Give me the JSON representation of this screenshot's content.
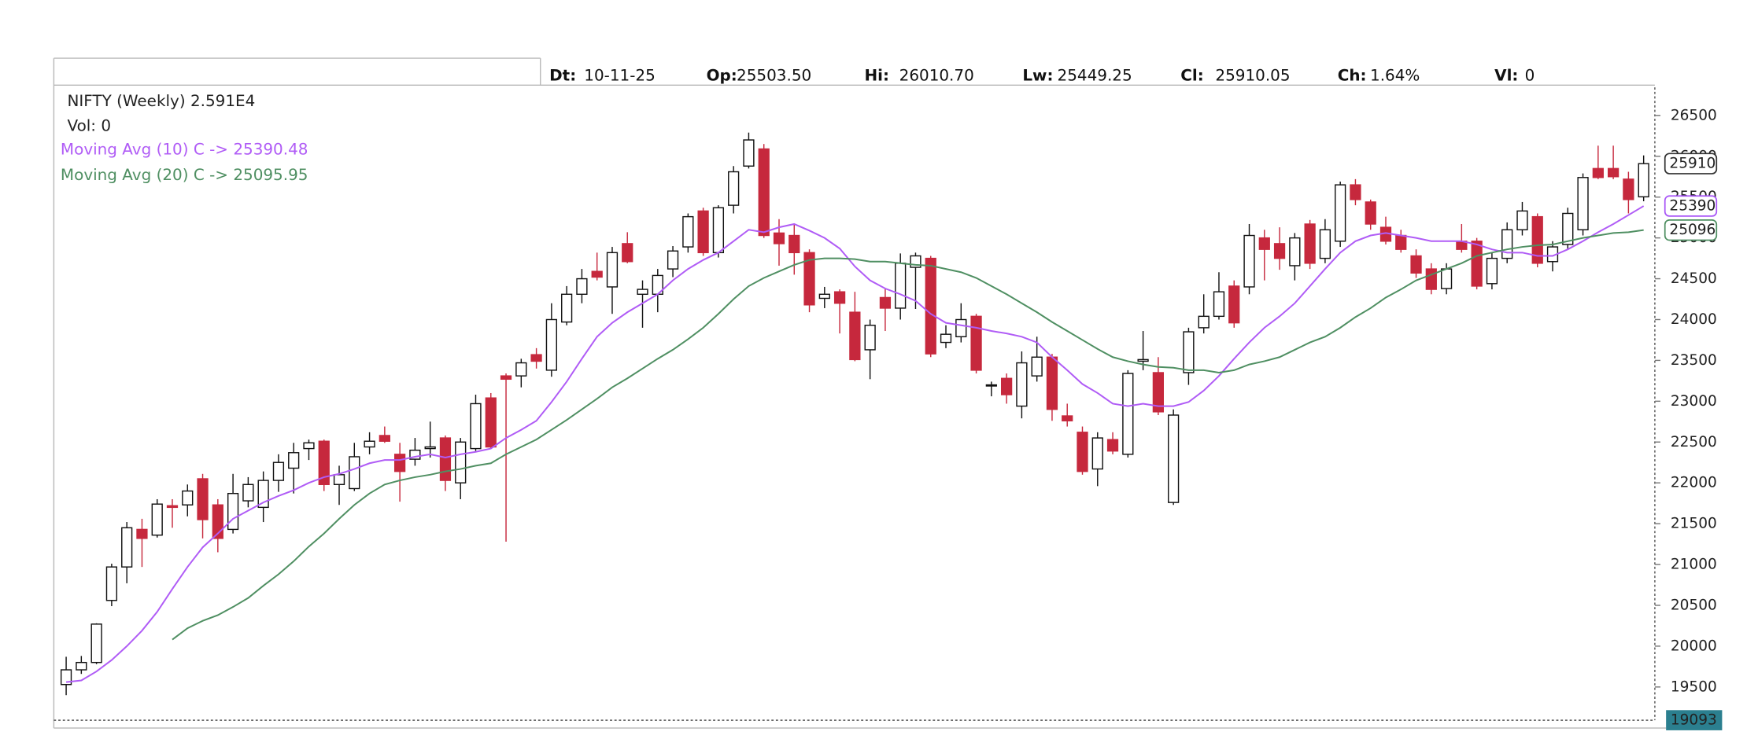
{
  "header": {
    "labels": [
      "Dt:",
      "Op:",
      "Hi:",
      "Lw:",
      "Cl:",
      "Ch:",
      "Vl:"
    ],
    "values": [
      "10-11-25",
      "25503.50",
      "26010.70",
      "25449.25",
      "25910.05",
      "1.64%",
      "0"
    ]
  },
  "chart_data": {
    "type": "candlestick",
    "volume_label": "Vol: 0",
    "ylim": [
      19093,
      26844
    ],
    "yticks": [
      19500,
      20000,
      20500,
      21000,
      21500,
      22000,
      22500,
      23000,
      23500,
      24000,
      24500,
      25000,
      25500,
      26000,
      26500
    ],
    "grid": false,
    "markers": [
      {
        "value": 25910.05,
        "label": "25910",
        "color": "#333333"
      },
      {
        "value": 25390.48,
        "label": "25390",
        "color": "#a855f7"
      },
      {
        "value": 25095.95,
        "label": "25096",
        "color": "#4f8f62"
      }
    ],
    "series": [
      {
        "name": "NIFTY (Weekly) 2.591E4",
        "up_color": "#ffffff",
        "down_color": "#c6283d",
        "open": [
          19530,
          19710,
          19800,
          20560,
          20970,
          21430,
          21360,
          21720,
          21730,
          22050,
          21730,
          21430,
          21780,
          21700,
          22030,
          22180,
          22420,
          22510,
          21980,
          21930,
          22440,
          22580,
          22350,
          22290,
          22420,
          22550,
          22000,
          22420,
          23040,
          23310,
          23310,
          23570,
          23380,
          23970,
          24310,
          24590,
          24400,
          24930,
          24310,
          24310,
          24620,
          24890,
          25330,
          24820,
          25400,
          25880,
          26090,
          25060,
          25030,
          24820,
          24260,
          24340,
          24090,
          23630,
          24270,
          24140,
          24640,
          24750,
          23720,
          23790,
          24040,
          23190,
          23280,
          22940,
          23310,
          23540,
          22820,
          22620,
          22170,
          22530,
          22350,
          23490,
          23350,
          21760,
          23350,
          23900,
          24040,
          24410,
          24400,
          25000,
          24930,
          24660,
          25170,
          24750,
          24960,
          25650,
          25440,
          25130,
          25030,
          24780,
          24620,
          24380,
          24960,
          24960,
          24440,
          24750,
          25100,
          25260,
          24710,
          24920,
          25100,
          25850,
          25850,
          25720,
          25503.5
        ],
        "high": [
          19870,
          19880,
          20280,
          21010,
          21520,
          21560,
          21800,
          21800,
          21980,
          22110,
          21800,
          22110,
          22070,
          22140,
          22350,
          22490,
          22530,
          22530,
          22210,
          22490,
          22620,
          22690,
          22490,
          22550,
          22750,
          22580,
          22550,
          23080,
          23100,
          23340,
          23520,
          23650,
          24200,
          24410,
          24620,
          24820,
          24890,
          25070,
          24480,
          24620,
          24900,
          25300,
          25370,
          25400,
          25880,
          26290,
          26150,
          25230,
          25170,
          24860,
          24400,
          24370,
          24340,
          24000,
          24380,
          24810,
          24820,
          24780,
          23930,
          24200,
          24070,
          23240,
          23340,
          23610,
          23790,
          23580,
          22970,
          22690,
          22620,
          22620,
          23380,
          23860,
          23540,
          22900,
          23900,
          24310,
          24580,
          24480,
          25170,
          25100,
          25130,
          25060,
          25220,
          25230,
          25690,
          25720,
          25470,
          25260,
          25100,
          24860,
          24690,
          24690,
          25170,
          25000,
          24820,
          25190,
          25440,
          25300,
          24960,
          25370,
          25790,
          26130,
          26130,
          25810,
          26010.7
        ],
        "low": [
          19400,
          19660,
          19780,
          20490,
          20770,
          20970,
          21330,
          21450,
          21590,
          21320,
          21150,
          21380,
          21700,
          21520,
          21890,
          21870,
          22280,
          21900,
          21730,
          21900,
          22350,
          22490,
          21770,
          22210,
          22310,
          21900,
          21800,
          22390,
          22420,
          21280,
          23170,
          23400,
          23300,
          23930,
          24200,
          24480,
          24070,
          24690,
          23900,
          24090,
          24520,
          24820,
          24780,
          24760,
          25300,
          25850,
          25000,
          24660,
          24550,
          24090,
          24140,
          23830,
          23490,
          23270,
          23860,
          24000,
          24130,
          23540,
          23650,
          23720,
          23340,
          23060,
          22970,
          22790,
          23240,
          22760,
          22690,
          22100,
          21960,
          22350,
          22310,
          23380,
          22830,
          21730,
          23200,
          23830,
          24000,
          23900,
          24310,
          24480,
          24610,
          24480,
          24620,
          24690,
          24890,
          25400,
          25100,
          24920,
          24820,
          24510,
          24310,
          24310,
          24820,
          24370,
          24370,
          24690,
          25030,
          24640,
          24590,
          24860,
          25030,
          25720,
          25720,
          25300,
          25449.25
        ],
        "close": [
          19710,
          19800,
          20270,
          20970,
          21450,
          21320,
          21740,
          21700,
          21900,
          21550,
          21320,
          21870,
          21980,
          22030,
          22250,
          22370,
          22490,
          21980,
          22100,
          22320,
          22510,
          22510,
          22140,
          22400,
          22440,
          22030,
          22500,
          22970,
          22440,
          23270,
          23470,
          23490,
          24000,
          24310,
          24500,
          24520,
          24820,
          24710,
          24370,
          24540,
          24840,
          25260,
          24820,
          25370,
          25810,
          26200,
          25030,
          24930,
          24820,
          24180,
          24310,
          24200,
          23510,
          23930,
          24140,
          24690,
          24780,
          23580,
          23820,
          24000,
          23380,
          23200,
          23080,
          23470,
          23540,
          22900,
          22760,
          22140,
          22550,
          22390,
          23340,
          23510,
          22870,
          22830,
          23850,
          24040,
          24340,
          23960,
          25030,
          24860,
          24750,
          25000,
          24690,
          25100,
          25650,
          25470,
          25170,
          24960,
          24860,
          24570,
          24370,
          24620,
          24860,
          24410,
          24750,
          25100,
          25330,
          24690,
          24890,
          25300,
          25740,
          25740,
          25750,
          25470,
          25910.05
        ]
      },
      {
        "name": "Moving Avg (10) C -> 25390.48",
        "color": "#b05cf6",
        "values": [
          19560,
          19580,
          19690,
          19830,
          20000,
          20190,
          20420,
          20700,
          20970,
          21210,
          21380,
          21560,
          21660,
          21760,
          21840,
          21910,
          22000,
          22070,
          22110,
          22170,
          22240,
          22280,
          22280,
          22320,
          22350,
          22310,
          22350,
          22380,
          22420,
          22550,
          22650,
          22760,
          22990,
          23240,
          23520,
          23790,
          23960,
          24090,
          24200,
          24310,
          24480,
          24620,
          24730,
          24820,
          24960,
          25100,
          25070,
          25130,
          25170,
          25090,
          25000,
          24870,
          24650,
          24480,
          24380,
          24310,
          24230,
          24070,
          23960,
          23930,
          23900,
          23860,
          23830,
          23790,
          23720,
          23540,
          23380,
          23210,
          23100,
          22970,
          22940,
          22970,
          22940,
          22940,
          22990,
          23130,
          23310,
          23520,
          23720,
          23900,
          24040,
          24200,
          24410,
          24620,
          24820,
          24960,
          25030,
          25060,
          25030,
          25000,
          24960,
          24960,
          24960,
          24920,
          24860,
          24820,
          24820,
          24780,
          24780,
          24860,
          24960,
          25070,
          25170,
          25280,
          25390.48
        ]
      },
      {
        "name": "Moving Avg (20) C -> 25095.95",
        "color": "#4f8f62",
        "values": [
          null,
          null,
          null,
          null,
          null,
          null,
          null,
          20080,
          20220,
          20310,
          20380,
          20480,
          20590,
          20740,
          20880,
          21040,
          21220,
          21380,
          21560,
          21730,
          21870,
          21980,
          22030,
          22070,
          22100,
          22140,
          22170,
          22210,
          22240,
          22350,
          22440,
          22530,
          22650,
          22770,
          22900,
          23030,
          23170,
          23280,
          23400,
          23520,
          23630,
          23760,
          23900,
          24070,
          24250,
          24410,
          24510,
          24590,
          24670,
          24730,
          24750,
          24750,
          24740,
          24710,
          24710,
          24690,
          24670,
          24660,
          24620,
          24580,
          24510,
          24410,
          24310,
          24200,
          24090,
          23970,
          23860,
          23750,
          23640,
          23540,
          23490,
          23450,
          23420,
          23410,
          23380,
          23380,
          23350,
          23380,
          23450,
          23490,
          23540,
          23630,
          23720,
          23790,
          23900,
          24030,
          24140,
          24270,
          24370,
          24480,
          24550,
          24620,
          24690,
          24780,
          24820,
          24860,
          24890,
          24910,
          24920,
          24960,
          25000,
          25030,
          25060,
          25070,
          25095.95
        ]
      }
    ]
  }
}
